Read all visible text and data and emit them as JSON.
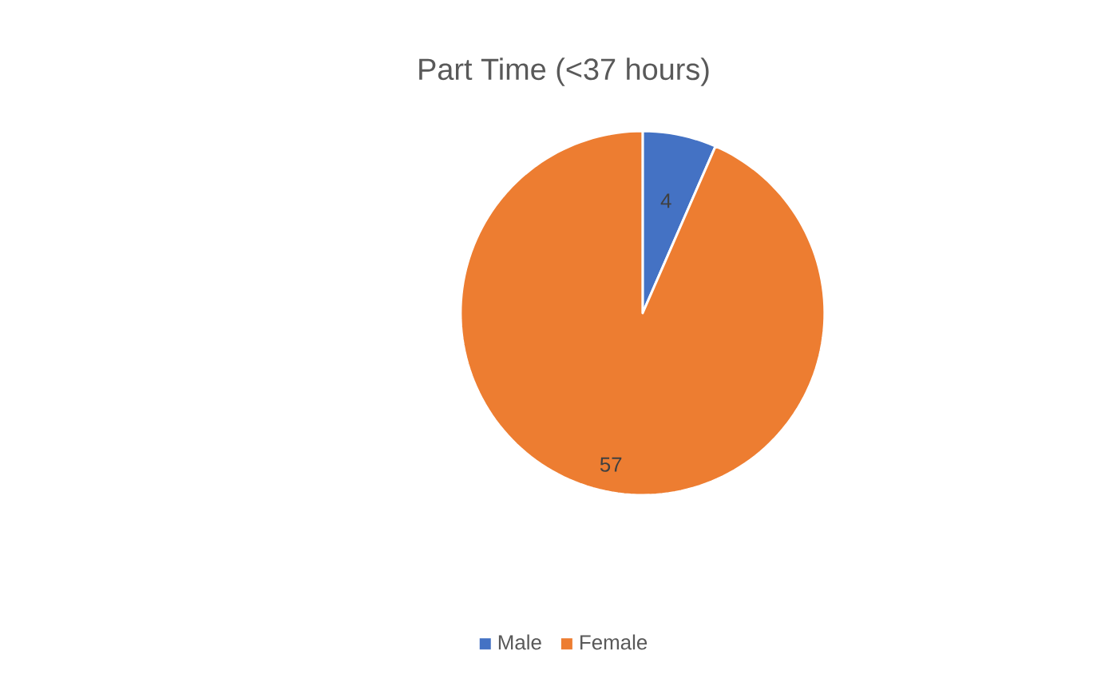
{
  "chart_data": {
    "type": "pie",
    "title": "Part Time (<37 hours)",
    "categories": [
      "Male",
      "Female"
    ],
    "values": [
      4,
      57
    ],
    "colors": [
      "#4472c4",
      "#ed7d31"
    ],
    "data_labels": true,
    "legend": "bottom"
  }
}
